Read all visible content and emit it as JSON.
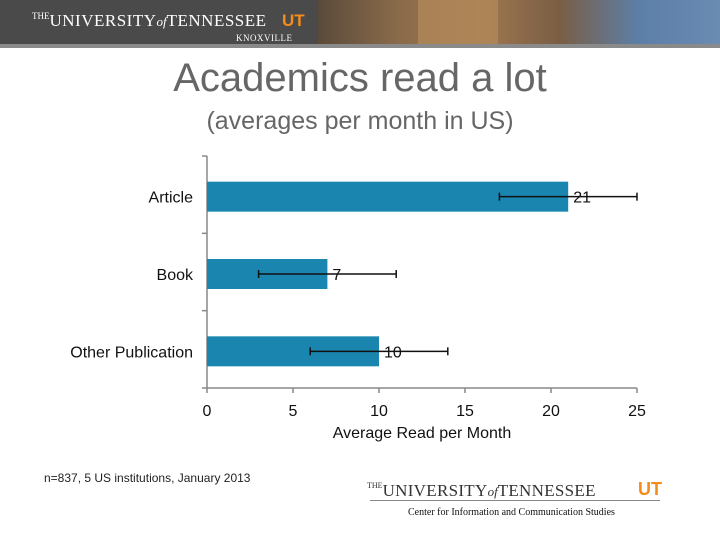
{
  "header": {
    "brand_the": "THE",
    "brand_university": "UNIVERSITY",
    "brand_of": "of",
    "brand_tennessee": "TENNESSEE",
    "brand_ut": "UT",
    "brand_location": "KNOXVILLE"
  },
  "title": "Academics read a lot",
  "subtitle": "(averages per month in US)",
  "chart_data": {
    "type": "bar",
    "orientation": "horizontal",
    "categories": [
      "Article",
      "Book",
      "Other Publication"
    ],
    "values": [
      21,
      7,
      10
    ],
    "data_labels": [
      "21",
      "7",
      "10"
    ],
    "error_bars": [
      [
        17,
        25
      ],
      [
        3,
        11
      ],
      [
        6,
        14
      ]
    ],
    "xlabel": "Average Read per Month",
    "ylabel": "",
    "xlim": [
      0,
      25
    ],
    "xticks": [
      0,
      5,
      10,
      15,
      20,
      25
    ],
    "grid": false,
    "legend": "none",
    "bar_color": "#1a86b0"
  },
  "footnote": "n=837, 5 US institutions, January 2013",
  "footer": {
    "brand_the": "THE",
    "brand_university": "UNIVERSITY",
    "brand_of": "of",
    "brand_tennessee": "TENNESSEE",
    "brand_ut": "UT",
    "center_name": "Center for Information and Communication Studies"
  }
}
